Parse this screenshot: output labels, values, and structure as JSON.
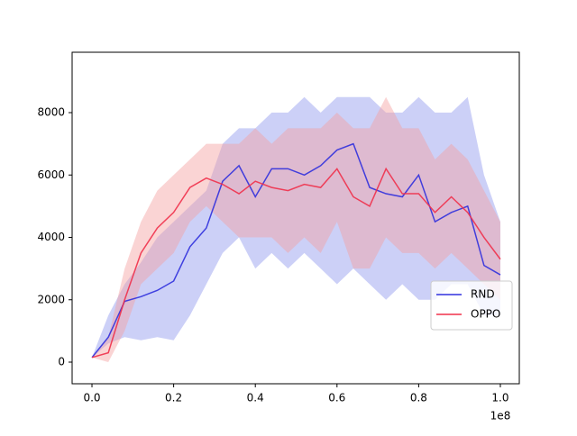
{
  "chart_data": {
    "type": "line",
    "x_offset_label": "1e8",
    "x": [
      0,
      4000000,
      8000000,
      12000000,
      16000000,
      20000000,
      24000000,
      28000000,
      32000000,
      36000000,
      40000000,
      44000000,
      48000000,
      52000000,
      56000000,
      60000000,
      64000000,
      68000000,
      72000000,
      76000000,
      80000000,
      84000000,
      88000000,
      92000000,
      96000000,
      100000000
    ],
    "series": [
      {
        "name": "RND",
        "color": "#3030dd",
        "band_color": "#8f96ee",
        "values": [
          150,
          800,
          1950,
          2100,
          2300,
          2600,
          3700,
          4300,
          5800,
          6300,
          5300,
          6200,
          6200,
          6000,
          6300,
          6800,
          7000,
          5600,
          5400,
          5300,
          6000,
          4500,
          4800,
          5000,
          3100,
          2800
        ],
        "lower": [
          150,
          600,
          800,
          700,
          800,
          700,
          1500,
          2500,
          3500,
          4000,
          3000,
          3500,
          3000,
          3500,
          3000,
          2500,
          3000,
          2500,
          2000,
          2500,
          2000,
          2000,
          2500,
          2500,
          1500,
          1500
        ],
        "upper": [
          150,
          1500,
          2500,
          3200,
          4000,
          4500,
          5000,
          5500,
          7000,
          7500,
          7500,
          8000,
          8000,
          8500,
          8000,
          8500,
          8500,
          8500,
          8000,
          8000,
          8500,
          8000,
          8000,
          8500,
          6000,
          4500
        ]
      },
      {
        "name": "OPPO",
        "color": "#f0304a",
        "band_color": "#f4a0a0",
        "values": [
          150,
          300,
          2000,
          3500,
          4300,
          4800,
          5600,
          5900,
          5700,
          5400,
          5800,
          5600,
          5500,
          5700,
          5600,
          6200,
          5300,
          5000,
          6200,
          5400,
          5400,
          4800,
          5300,
          4800,
          4000,
          3300
        ],
        "lower": [
          150,
          0,
          1000,
          2500,
          3000,
          3500,
          4500,
          5000,
          4500,
          4000,
          4000,
          4000,
          3500,
          4000,
          3500,
          4500,
          3000,
          3000,
          4000,
          3500,
          3500,
          3000,
          3500,
          3000,
          2500,
          2000
        ],
        "upper": [
          150,
          800,
          3000,
          4500,
          5500,
          6000,
          6500,
          7000,
          7000,
          7000,
          7500,
          7000,
          7500,
          7500,
          7500,
          8000,
          7500,
          7500,
          8500,
          7500,
          7500,
          6500,
          7000,
          6500,
          5500,
          4500
        ]
      }
    ],
    "xlim": [
      -4860000,
      104640000
    ],
    "ylim": [
      -693,
      9936
    ],
    "xticks": [
      {
        "value": 0,
        "label": "0.0"
      },
      {
        "value": 20000000,
        "label": "0.2"
      },
      {
        "value": 40000000,
        "label": "0.4"
      },
      {
        "value": 60000000,
        "label": "0.6"
      },
      {
        "value": 80000000,
        "label": "0.8"
      },
      {
        "value": 100000000,
        "label": "1.0"
      }
    ],
    "yticks": [
      0,
      2000,
      4000,
      6000,
      8000
    ],
    "legend": "lower right"
  }
}
